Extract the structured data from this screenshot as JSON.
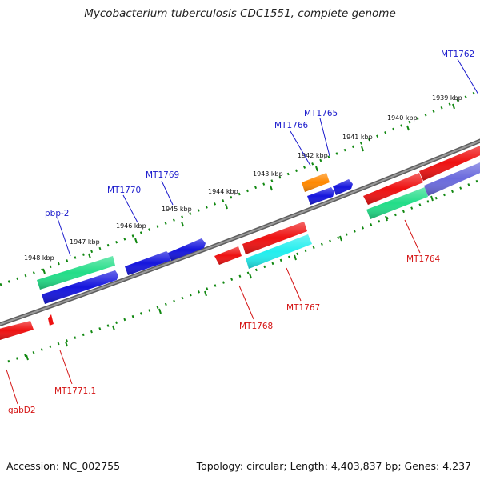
{
  "title": "Mycobacterium tuberculosis CDC1551, complete genome",
  "footer": {
    "accession": "Accession: NC_002755",
    "topology": "Topology: circular; Length: 4,403,837 bp; Genes: 4,237"
  },
  "colors": {
    "backbone": "#808080",
    "ticks": "#118811",
    "forward_label": "#1a1acc",
    "reverse_label": "#d41313",
    "red": "#ee1111",
    "blue": "#1515dd",
    "green": "#22dd88",
    "cyan": "#22eeee",
    "orange": "#ff8800",
    "purple": "#6a6add"
  },
  "scale_labels": [
    "1939 kbp",
    "1940 kbp",
    "1941 kbp",
    "1942 kbp",
    "1943 kbp",
    "1944 kbp",
    "1945 kbp",
    "1946 kbp",
    "1947 kbp",
    "1948 kbp"
  ],
  "gene_labels": {
    "forward": [
      "MT1762",
      "MT1765",
      "MT1766",
      "MT1769",
      "MT1770",
      "pbp-2"
    ],
    "reverse": [
      "MT1764",
      "MT1767",
      "MT1768",
      "MT1771.1",
      "gabD2"
    ]
  }
}
